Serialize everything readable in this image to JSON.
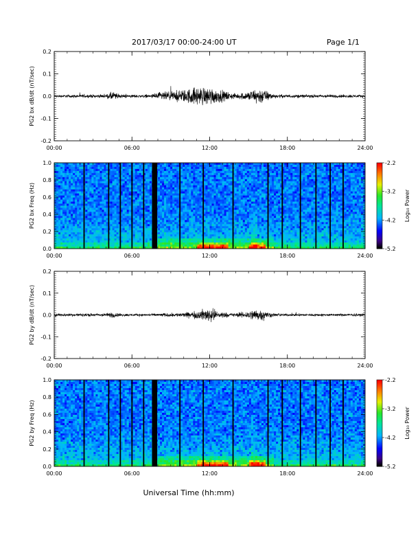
{
  "header": {
    "title": "2017/03/17  00:00-24:00 UT",
    "page": "Page 1/1"
  },
  "chart_data": [
    {
      "type": "line",
      "ylabel": "PG2 bx dB/dt (nT/sec)",
      "ylim": [
        -0.2,
        0.2
      ],
      "yticks": [
        "0.2",
        "0.1",
        "0.0",
        "-0.1",
        "-0.2"
      ],
      "xlim": [
        "00:00",
        "24:00"
      ],
      "xticks": [
        "00:00",
        "06:00",
        "12:00",
        "18:00",
        "24:00"
      ],
      "envelope": {
        "x_hours": [
          0,
          2,
          4,
          4.5,
          5,
          6,
          7.5,
          8,
          9,
          10,
          10.5,
          11,
          11.5,
          12,
          12.5,
          13,
          13.5,
          14,
          15,
          15.5,
          16,
          16.5,
          17,
          18,
          19,
          20,
          21,
          22,
          23,
          24
        ],
        "amp": [
          0.008,
          0.01,
          0.01,
          0.03,
          0.012,
          0.01,
          0.01,
          0.025,
          0.03,
          0.04,
          0.05,
          0.06,
          0.055,
          0.06,
          0.045,
          0.035,
          0.025,
          0.015,
          0.03,
          0.045,
          0.05,
          0.03,
          0.012,
          0.01,
          0.01,
          0.01,
          0.01,
          0.01,
          0.01,
          0.008
        ]
      }
    },
    {
      "type": "heatmap",
      "ylabel": "PG2 bx Freq (Hz)",
      "ylim": [
        0.0,
        1.0
      ],
      "yticks": [
        "1.0",
        "0.8",
        "0.6",
        "0.4",
        "0.2",
        "0.0"
      ],
      "xlim": [
        "00:00",
        "24:00"
      ],
      "xticks": [
        "00:00",
        "06:00",
        "12:00",
        "18:00",
        "24:00"
      ],
      "colorbar": {
        "label": "Log₁₀ Power",
        "range": [
          -5.2,
          -2.2
        ],
        "ticks": [
          "-2.2",
          "-3.2",
          "-4.2",
          "-5.2"
        ]
      },
      "gap_hours": [
        2.3,
        4.2,
        5.1,
        6.0,
        6.9,
        7.6,
        7.75,
        7.85,
        9.7,
        11.5,
        13.8,
        16.5,
        17.6,
        19.0,
        20.2,
        21.3,
        22.3
      ]
    },
    {
      "type": "line",
      "ylabel": "PG2 by dB/dt (nT/sec)",
      "ylim": [
        -0.2,
        0.2
      ],
      "yticks": [
        "0.2",
        "0.1",
        "0.0",
        "-0.1",
        "-0.2"
      ],
      "xlim": [
        "00:00",
        "24:00"
      ],
      "xticks": [
        "00:00",
        "06:00",
        "12:00",
        "18:00",
        "24:00"
      ],
      "envelope": {
        "x_hours": [
          0,
          2,
          4,
          4.5,
          5,
          6,
          7.5,
          8,
          9,
          10,
          10.5,
          11,
          11.5,
          12,
          12.5,
          13,
          13.5,
          14,
          15,
          15.5,
          16,
          16.5,
          17,
          18,
          19,
          20,
          21,
          22,
          23,
          24
        ],
        "amp": [
          0.01,
          0.01,
          0.01,
          0.02,
          0.01,
          0.008,
          0.008,
          0.01,
          0.012,
          0.015,
          0.02,
          0.025,
          0.035,
          0.05,
          0.03,
          0.02,
          0.012,
          0.012,
          0.025,
          0.04,
          0.035,
          0.02,
          0.01,
          0.008,
          0.008,
          0.008,
          0.008,
          0.008,
          0.008,
          0.008
        ]
      }
    },
    {
      "type": "heatmap",
      "ylabel": "PG2 by Freq (Hz)",
      "ylim": [
        0.0,
        1.0
      ],
      "yticks": [
        "1.0",
        "0.8",
        "0.6",
        "0.4",
        "0.2",
        "0.0"
      ],
      "xlim": [
        "00:00",
        "24:00"
      ],
      "xticks": [
        "00:00",
        "06:00",
        "12:00",
        "18:00",
        "24:00"
      ],
      "colorbar": {
        "label": "Log₁₀ Power",
        "range": [
          -5.2,
          -2.2
        ],
        "ticks": [
          "-2.2",
          "-3.2",
          "-4.2",
          "-5.2"
        ]
      },
      "gap_hours": [
        2.3,
        4.2,
        5.1,
        6.0,
        6.9,
        7.6,
        7.75,
        7.85,
        9.7,
        11.5,
        13.8,
        16.5,
        17.6,
        19.0,
        20.2,
        21.3,
        22.3
      ]
    }
  ],
  "xlabel": "Universal Time (hh:mm)"
}
